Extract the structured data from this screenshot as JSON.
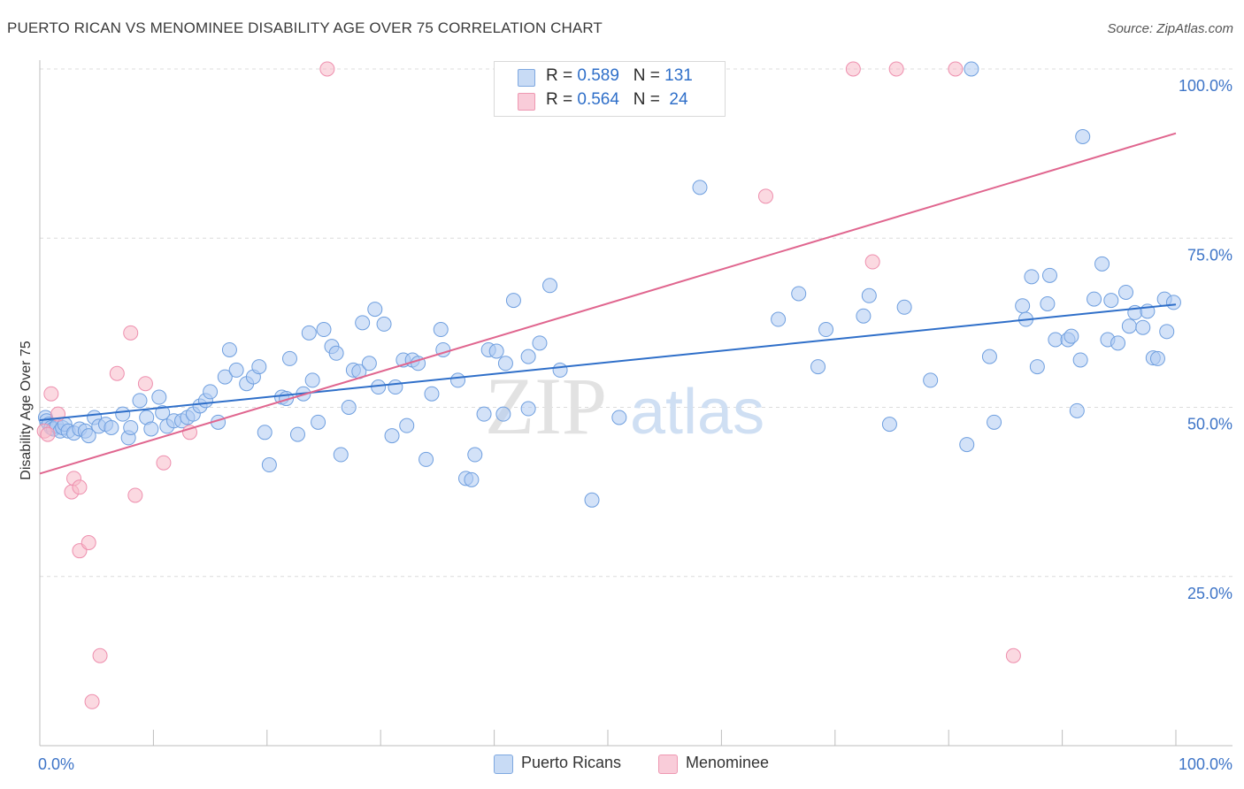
{
  "header": {
    "title": "PUERTO RICAN VS MENOMINEE DISABILITY AGE OVER 75 CORRELATION CHART",
    "source": "Source: ZipAtlas.com"
  },
  "watermark": {
    "part1": "ZIP",
    "part2": "atlas"
  },
  "stats": {
    "rows": [
      {
        "r_label": "R = ",
        "r_value": "0.589",
        "n_label": "N = ",
        "n_value": "131",
        "color": "#aecbf2"
      },
      {
        "r_label": "R = ",
        "r_value": "0.564",
        "n_label": "N = ",
        "n_value": " 24",
        "color": "#f7b9c9"
      }
    ]
  },
  "legend": {
    "items": [
      {
        "label": "Puerto Ricans",
        "color": "#aecbf2"
      },
      {
        "label": "Menominee",
        "color": "#f7b9c9"
      }
    ]
  },
  "chart_data": {
    "type": "scatter",
    "xlabel": "",
    "ylabel": "Disability Age Over 75",
    "xlim": [
      0,
      100
    ],
    "ylim": [
      0,
      100
    ],
    "x_tick_labels": [
      "0.0%",
      "100.0%"
    ],
    "y_tick_labels": [
      "100.0%",
      "75.0%",
      "50.0%",
      "25.0%"
    ],
    "y_ticks": [
      100,
      75,
      50,
      25
    ],
    "grid": "horizontal dashed",
    "legend_position": "bottom-center",
    "series": [
      {
        "name": "Puerto Ricans",
        "color": "#6f9fdf",
        "fill": "#aecbf2",
        "trend": {
          "x": [
            0,
            100
          ],
          "y": [
            48.1,
            65.2
          ],
          "color": "#2f6fc9"
        },
        "points": [
          [
            0.5,
            48.5
          ],
          [
            0.6,
            48
          ],
          [
            0.8,
            47.5
          ],
          [
            1,
            47
          ],
          [
            1.2,
            46.8
          ],
          [
            1.5,
            47.2
          ],
          [
            1.8,
            46.5
          ],
          [
            2,
            47
          ],
          [
            2.2,
            47.5
          ],
          [
            2.5,
            46.5
          ],
          [
            3,
            46.2
          ],
          [
            3.5,
            46.8
          ],
          [
            4,
            46.5
          ],
          [
            4.3,
            45.8
          ],
          [
            4.8,
            48.5
          ],
          [
            5.2,
            47.2
          ],
          [
            5.8,
            47.5
          ],
          [
            6.3,
            47
          ],
          [
            7.3,
            49
          ],
          [
            7.8,
            45.5
          ],
          [
            8,
            47
          ],
          [
            8.8,
            51
          ],
          [
            9.4,
            48.5
          ],
          [
            9.8,
            46.8
          ],
          [
            10.5,
            51.5
          ],
          [
            10.8,
            49.2
          ],
          [
            11.2,
            47.2
          ],
          [
            11.8,
            48
          ],
          [
            12.5,
            48
          ],
          [
            13,
            48.5
          ],
          [
            13.5,
            49
          ],
          [
            14.1,
            50.2
          ],
          [
            14.6,
            51
          ],
          [
            15,
            52.3
          ],
          [
            15.7,
            47.8
          ],
          [
            16.3,
            54.5
          ],
          [
            16.7,
            58.5
          ],
          [
            17.3,
            55.5
          ],
          [
            18.2,
            53.5
          ],
          [
            18.8,
            54.5
          ],
          [
            19.3,
            56
          ],
          [
            19.8,
            46.3
          ],
          [
            20.2,
            41.5
          ],
          [
            21.3,
            51.5
          ],
          [
            21.7,
            51.3
          ],
          [
            22,
            57.2
          ],
          [
            22.7,
            46
          ],
          [
            23.2,
            52
          ],
          [
            23.7,
            61
          ],
          [
            24,
            54
          ],
          [
            24.5,
            47.8
          ],
          [
            25,
            61.5
          ],
          [
            25.7,
            59
          ],
          [
            26.1,
            58
          ],
          [
            26.5,
            43
          ],
          [
            27.2,
            50
          ],
          [
            27.6,
            55.5
          ],
          [
            28.1,
            55.3
          ],
          [
            28.4,
            62.5
          ],
          [
            29,
            56.5
          ],
          [
            29.5,
            64.5
          ],
          [
            29.8,
            53
          ],
          [
            30.3,
            62.3
          ],
          [
            31,
            45.8
          ],
          [
            31.3,
            53
          ],
          [
            32,
            57
          ],
          [
            32.3,
            47.3
          ],
          [
            32.8,
            57
          ],
          [
            33.3,
            56.5
          ],
          [
            34,
            42.3
          ],
          [
            34.5,
            52
          ],
          [
            35.3,
            61.5
          ],
          [
            35.5,
            58.5
          ],
          [
            36.8,
            54
          ],
          [
            37.5,
            39.5
          ],
          [
            38,
            39.3
          ],
          [
            38.3,
            43
          ],
          [
            39.1,
            49
          ],
          [
            39.5,
            58.5
          ],
          [
            40.2,
            58.3
          ],
          [
            40.8,
            49
          ],
          [
            41,
            56.5
          ],
          [
            41.7,
            65.8
          ],
          [
            43,
            49.8
          ],
          [
            43,
            57.5
          ],
          [
            44,
            59.5
          ],
          [
            44.9,
            68
          ],
          [
            45.8,
            55.5
          ],
          [
            48.6,
            36.3
          ],
          [
            51,
            48.5
          ],
          [
            58.1,
            82.5
          ],
          [
            65,
            63
          ],
          [
            66.8,
            66.8
          ],
          [
            68.5,
            56
          ],
          [
            69.2,
            61.5
          ],
          [
            72.5,
            63.5
          ],
          [
            73,
            66.5
          ],
          [
            74.8,
            47.5
          ],
          [
            76.1,
            64.8
          ],
          [
            78.4,
            54
          ],
          [
            81.6,
            44.5
          ],
          [
            83.6,
            57.5
          ],
          [
            84,
            47.8
          ],
          [
            86.5,
            65
          ],
          [
            86.8,
            63
          ],
          [
            87.3,
            69.3
          ],
          [
            87.8,
            56
          ],
          [
            88.7,
            65.3
          ],
          [
            88.9,
            69.5
          ],
          [
            89.4,
            60
          ],
          [
            90.5,
            60
          ],
          [
            90.8,
            60.5
          ],
          [
            91.3,
            49.5
          ],
          [
            91.6,
            57
          ],
          [
            91.8,
            90
          ],
          [
            92.8,
            66
          ],
          [
            93.5,
            71.2
          ],
          [
            94,
            60
          ],
          [
            94.3,
            65.8
          ],
          [
            94.9,
            59.5
          ],
          [
            95.6,
            67
          ],
          [
            95.9,
            62
          ],
          [
            96.4,
            64
          ],
          [
            97.1,
            61.8
          ],
          [
            97.5,
            64.2
          ],
          [
            98,
            57.3
          ],
          [
            98.4,
            57.2
          ],
          [
            99,
            66
          ],
          [
            99.2,
            61.2
          ],
          [
            99.8,
            65.5
          ],
          [
            82,
            100
          ]
        ]
      },
      {
        "name": "Menominee",
        "color": "#ee8fae",
        "fill": "#f7b9c9",
        "trend": {
          "x": [
            0,
            100
          ],
          "y": [
            40.2,
            90.5
          ],
          "color": "#e0668f"
        },
        "points": [
          [
            0.4,
            46.5
          ],
          [
            0.7,
            46
          ],
          [
            1,
            52
          ],
          [
            1.6,
            49
          ],
          [
            2.8,
            37.5
          ],
          [
            3,
            39.5
          ],
          [
            3.5,
            38.2
          ],
          [
            3.5,
            28.8
          ],
          [
            4.3,
            30
          ],
          [
            4.6,
            6.5
          ],
          [
            5.3,
            13.3
          ],
          [
            6.8,
            55
          ],
          [
            8,
            61
          ],
          [
            8.4,
            37
          ],
          [
            9.3,
            53.5
          ],
          [
            10.9,
            41.8
          ],
          [
            13.2,
            46.3
          ],
          [
            25.3,
            100
          ],
          [
            63.9,
            81.2
          ],
          [
            71.6,
            100
          ],
          [
            73.3,
            71.5
          ],
          [
            75.4,
            100
          ],
          [
            80.6,
            100
          ],
          [
            85.7,
            13.3
          ]
        ]
      }
    ]
  }
}
